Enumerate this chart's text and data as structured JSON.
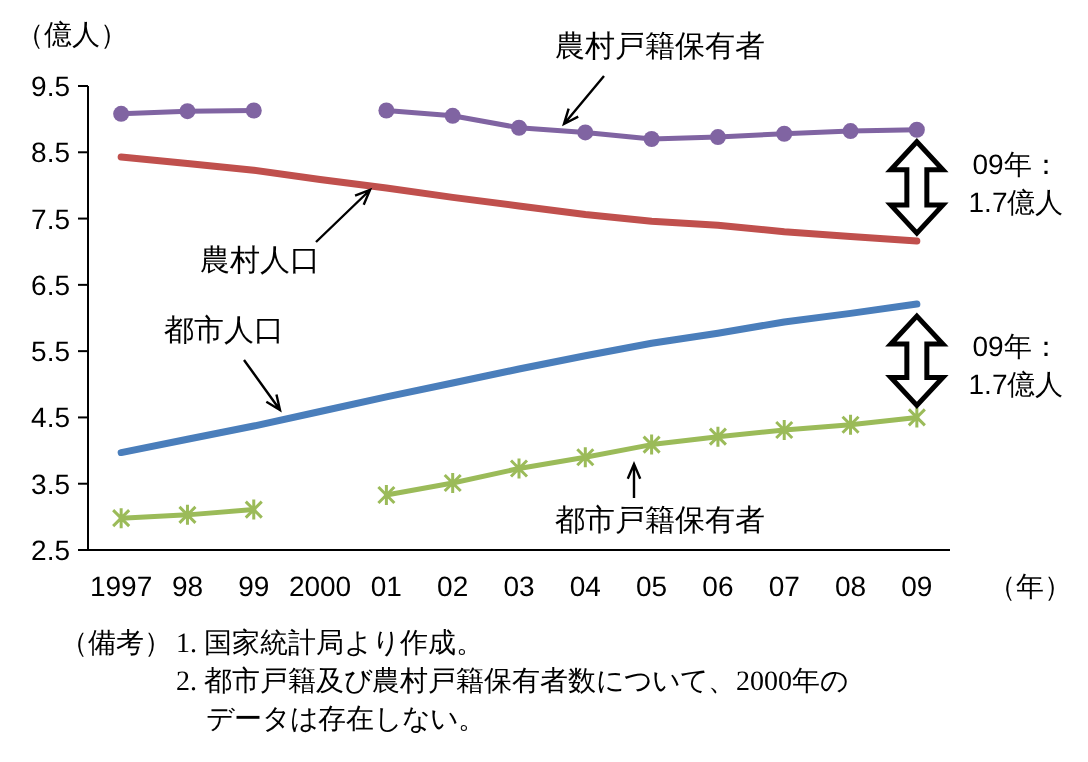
{
  "chart_data": {
    "type": "line",
    "ylabel": "（億人）",
    "xlabel": "（年）",
    "categories": [
      "1997",
      "98",
      "99",
      "2000",
      "01",
      "02",
      "03",
      "04",
      "05",
      "06",
      "07",
      "08",
      "09"
    ],
    "ylim": [
      2.5,
      9.5
    ],
    "yticks": [
      2.5,
      3.5,
      4.5,
      5.5,
      6.5,
      7.5,
      8.5,
      9.5
    ],
    "line_style": "solid",
    "series": [
      {
        "name": "農村戸籍保有者",
        "color": "#8064a2",
        "marker": "circle",
        "values": [
          9.08,
          9.12,
          9.13,
          null,
          9.13,
          9.05,
          8.87,
          8.8,
          8.7,
          8.73,
          8.78,
          8.82,
          8.84
        ]
      },
      {
        "name": "農村人口",
        "color": "#c0504d",
        "marker": "none",
        "values": [
          8.43,
          8.33,
          8.23,
          8.09,
          7.96,
          7.82,
          7.69,
          7.56,
          7.46,
          7.4,
          7.3,
          7.23,
          7.16
        ]
      },
      {
        "name": "都市人口",
        "color": "#4a7ebb",
        "marker": "none",
        "values": [
          3.97,
          4.17,
          4.37,
          4.59,
          4.81,
          5.02,
          5.23,
          5.43,
          5.62,
          5.77,
          5.94,
          6.07,
          6.21
        ]
      },
      {
        "name": "都市戸籍保有者",
        "color": "#9bbb59",
        "marker": "cross",
        "values": [
          2.98,
          3.03,
          3.11,
          null,
          3.33,
          3.51,
          3.73,
          3.9,
          4.09,
          4.21,
          4.31,
          4.39,
          4.5
        ]
      }
    ],
    "annotations": [
      "09年：\n1.7億人",
      "09年：\n1.7億人",
      "（備考）",
      "1. 国家統計局より作成。",
      "2. 都市戸籍及び農村戸籍保有者数について、2000年の",
      "データは存在しない。"
    ]
  }
}
